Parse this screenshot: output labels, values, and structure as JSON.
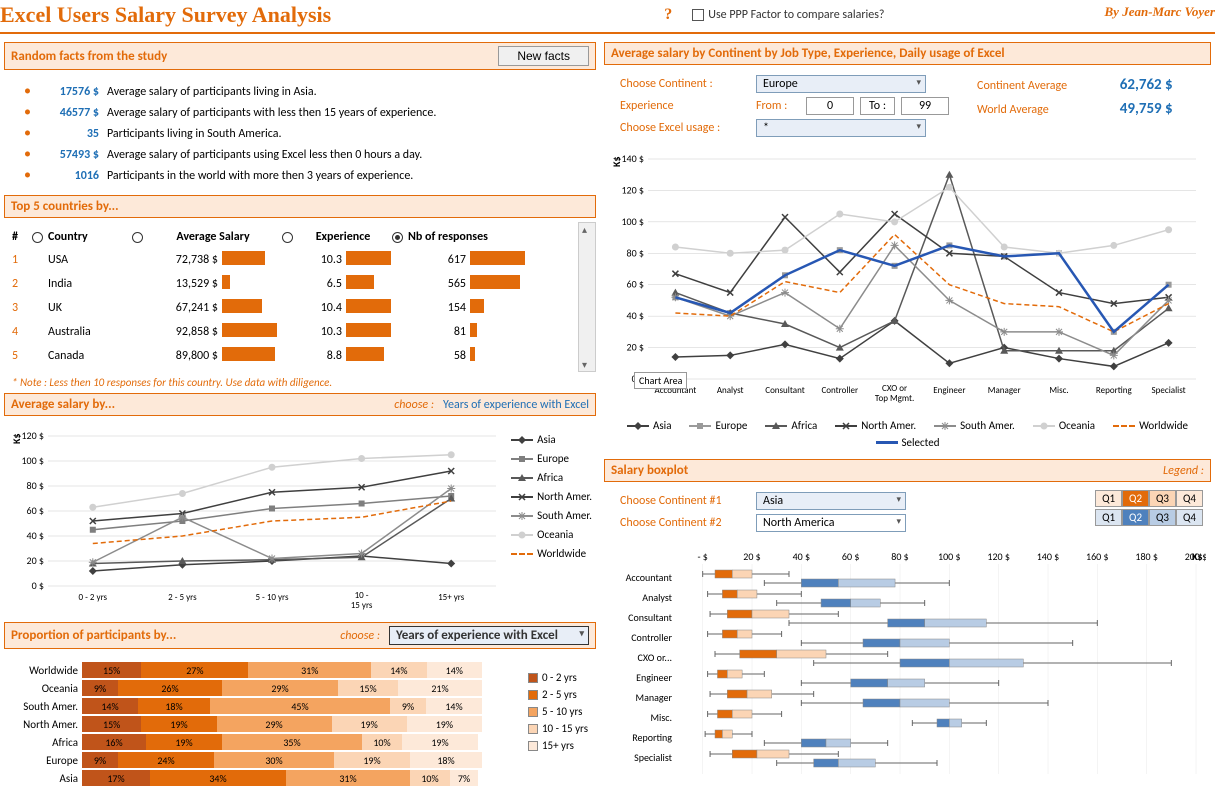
{
  "page": {
    "title": "Excel Users Salary Survey Analysis",
    "byline": "By Jean-Marc Voyer",
    "ppp_label": "Use PPP Factor to compare salaries?",
    "help": "?"
  },
  "facts_section": {
    "title": "Random facts from the study",
    "button": "New facts",
    "items": [
      {
        "value": "17576 $",
        "text": "Average salary of participants living in Asia."
      },
      {
        "value": "46577 $",
        "text": "Average salary of participants with less then 15 years of experience."
      },
      {
        "value": "35",
        "text": "Participants living in South America."
      },
      {
        "value": "57493 $",
        "text": "Average salary of participants using Excel less then 0 hours a day."
      },
      {
        "value": "1016",
        "text": "Participants in the world with more then 3 years of experience."
      }
    ]
  },
  "top5": {
    "title": "Top 5 countries by...",
    "headers": {
      "num": "#",
      "country": "Country",
      "salary": "Average Salary",
      "exp": "Experience",
      "resp": "Nb of responses"
    },
    "selected_sort": "resp",
    "max_salary": 92858,
    "max_exp": 10.4,
    "max_resp": 617,
    "rows": [
      {
        "n": "1",
        "country": "USA",
        "salary": "72,738  $",
        "salary_v": 72738,
        "exp": "10.3",
        "exp_v": 10.3,
        "resp": "617",
        "resp_v": 617
      },
      {
        "n": "2",
        "country": "India",
        "salary": "13,529  $",
        "salary_v": 13529,
        "exp": "6.5",
        "exp_v": 6.5,
        "resp": "565",
        "resp_v": 565
      },
      {
        "n": "3",
        "country": "UK",
        "salary": "67,241  $",
        "salary_v": 67241,
        "exp": "10.4",
        "exp_v": 10.4,
        "resp": "154",
        "resp_v": 154
      },
      {
        "n": "4",
        "country": "Australia",
        "salary": "92,858  $",
        "salary_v": 92858,
        "exp": "10.3",
        "exp_v": 10.3,
        "resp": "81",
        "resp_v": 81
      },
      {
        "n": "5",
        "country": "Canada",
        "salary": "89,800  $",
        "salary_v": 89800,
        "exp": "8.8",
        "exp_v": 8.8,
        "resp": "58",
        "resp_v": 58
      }
    ],
    "note": "* Note : Less then 10 responses for this country. Use data with diligence."
  },
  "avg_by": {
    "title": "Average salary by...",
    "choose": "choose :",
    "selected": "Years of experience with Excel",
    "ylabel": "K$",
    "ylim": [
      0,
      120
    ],
    "ytick": 20,
    "categories": [
      "0 - 2 yrs",
      "2 - 5 yrs",
      "5 - 10 yrs",
      "10 - 15 yrs",
      "15+ yrs"
    ],
    "series": [
      {
        "name": "Asia",
        "color": "#404040",
        "marker": "diamond",
        "values": [
          12,
          17,
          20,
          24,
          18
        ]
      },
      {
        "name": "Europe",
        "color": "#7f7f7f",
        "marker": "square",
        "values": [
          45,
          52,
          62,
          66,
          72
        ]
      },
      {
        "name": "Africa",
        "color": "#595959",
        "marker": "triangle",
        "values": [
          18,
          20,
          21,
          23,
          70
        ]
      },
      {
        "name": "North Amer.",
        "color": "#3f3f3f",
        "marker": "x",
        "values": [
          52,
          58,
          75,
          79,
          92
        ]
      },
      {
        "name": "South Amer.",
        "color": "#8c8c8c",
        "marker": "star",
        "values": [
          19,
          55,
          22,
          26,
          78
        ]
      },
      {
        "name": "Oceania",
        "color": "#d0d0d0",
        "marker": "circle",
        "values": [
          63,
          74,
          95,
          102,
          105
        ]
      },
      {
        "name": "Worldwide",
        "color": "#e26b0a",
        "marker": "none",
        "dash": true,
        "values": [
          34,
          40,
          52,
          55,
          68
        ]
      }
    ]
  },
  "proportion": {
    "title": "Proportion of participants by...",
    "choose": "choose :",
    "selected": "Years of experience with Excel",
    "colors": [
      "#c0541a",
      "#e26b0a",
      "#f4a460",
      "#fbd5b5",
      "#fde9d9"
    ],
    "legend": [
      "0 - 2 yrs",
      "2 - 5 yrs",
      "5 - 10 yrs",
      "10 - 15 yrs",
      "15+ yrs"
    ],
    "rows": [
      {
        "label": "Worldwide",
        "segs": [
          15,
          27,
          31,
          14,
          14
        ]
      },
      {
        "label": "Oceania",
        "segs": [
          9,
          26,
          29,
          15,
          21
        ]
      },
      {
        "label": "South Amer.",
        "segs": [
          14,
          18,
          45,
          9,
          14
        ]
      },
      {
        "label": "North Amer.",
        "segs": [
          15,
          19,
          29,
          19,
          19
        ]
      },
      {
        "label": "Africa",
        "segs": [
          16,
          19,
          35,
          10,
          19
        ]
      },
      {
        "label": "Europe",
        "segs": [
          9,
          24,
          30,
          19,
          18
        ]
      },
      {
        "label": "Asia",
        "segs": [
          17,
          34,
          31,
          10,
          7
        ]
      }
    ]
  },
  "right_chart": {
    "title": "Average salary by Continent by Job Type, Experience, Daily usage of Excel",
    "choose_continent": "Choose Continent :",
    "continent": "Europe",
    "experience_lbl": "Experience",
    "from": "From :",
    "from_v": "0",
    "to": "To :",
    "to_v": "99",
    "usage_lbl": "Choose Excel usage :",
    "usage_v": "*",
    "cont_avg_lbl": "Continent Average",
    "cont_avg": "62,762  $",
    "world_avg_lbl": "World Average",
    "world_avg": "49,759  $",
    "ylabel": "K$",
    "ylim": [
      0,
      140
    ],
    "ytick": 20,
    "chart_area_label": "Chart Area",
    "categories": [
      "Accountant",
      "Analyst",
      "Consultant",
      "Controller",
      "CXO or Top Mgmt.",
      "Engineer",
      "Manager",
      "Misc.",
      "Reporting",
      "Specialist"
    ],
    "series": [
      {
        "name": "Asia",
        "color": "#404040",
        "marker": "diamond",
        "values": [
          14,
          15,
          22,
          13,
          37,
          10,
          20,
          13,
          8,
          23
        ]
      },
      {
        "name": "Europe",
        "color": "#9a9a9a",
        "marker": "square",
        "values": [
          52,
          42,
          66,
          82,
          72,
          85,
          78,
          80,
          30,
          60
        ]
      },
      {
        "name": "Africa",
        "color": "#595959",
        "marker": "triangle",
        "values": [
          55,
          42,
          35,
          20,
          37,
          130,
          18,
          18,
          18,
          45
        ]
      },
      {
        "name": "North Amer.",
        "color": "#3f3f3f",
        "marker": "x",
        "values": [
          67,
          55,
          103,
          68,
          105,
          80,
          78,
          55,
          48,
          52
        ]
      },
      {
        "name": "South Amer.",
        "color": "#8c8c8c",
        "marker": "star",
        "values": [
          52,
          40,
          55,
          32,
          85,
          50,
          30,
          30,
          15,
          50
        ]
      },
      {
        "name": "Oceania",
        "color": "#d0d0d0",
        "marker": "circle",
        "values": [
          84,
          80,
          82,
          105,
          100,
          122,
          84,
          80,
          85,
          95
        ]
      },
      {
        "name": "Worldwide",
        "color": "#e26b0a",
        "marker": "none",
        "dash": true,
        "values": [
          42,
          40,
          62,
          55,
          92,
          60,
          48,
          46,
          30,
          48
        ]
      },
      {
        "name": "Selected",
        "color": "#2757b3",
        "marker": "none",
        "thick": true,
        "values": [
          52,
          42,
          66,
          82,
          72,
          85,
          78,
          80,
          30,
          60
        ]
      }
    ]
  },
  "boxplot": {
    "title": "Salary boxplot",
    "legend_label": "Legend :",
    "choose1": "Choose Continent #1",
    "c1": "Asia",
    "choose2": "Choose Continent #2",
    "c2": "North America",
    "q_labels": [
      "Q1",
      "Q2",
      "Q3",
      "Q4"
    ],
    "colors1": [
      "#fde9d9",
      "#e26b0a",
      "#fbd5b5",
      "#fde9d9"
    ],
    "colors2": [
      "#dbe5f1",
      "#4f81bd",
      "#b8cce4",
      "#dbe5f1"
    ],
    "xlim": [
      -10,
      200
    ],
    "xtick": 20,
    "jobs": [
      "Accountant",
      "Analyst",
      "Consultant",
      "Controller",
      "CXO or...",
      "Engineer",
      "Manager",
      "Misc.",
      "Reporting",
      "Specialist"
    ],
    "data": [
      {
        "a": {
          "wl": 0,
          "q1": 5,
          "q2": 12,
          "q3": 20,
          "wr": 35
        },
        "b": {
          "wl": 25,
          "q1": 40,
          "q2": 55,
          "q3": 78,
          "wr": 100
        }
      },
      {
        "a": {
          "wl": 2,
          "q1": 8,
          "q2": 14,
          "q3": 22,
          "wr": 40
        },
        "b": {
          "wl": 30,
          "q1": 48,
          "q2": 60,
          "q3": 72,
          "wr": 90
        }
      },
      {
        "a": {
          "wl": 3,
          "q1": 10,
          "q2": 20,
          "q3": 35,
          "wr": 55
        },
        "b": {
          "wl": 35,
          "q1": 75,
          "q2": 90,
          "q3": 115,
          "wr": 160
        }
      },
      {
        "a": {
          "wl": 2,
          "q1": 8,
          "q2": 14,
          "q3": 20,
          "wr": 32
        },
        "b": {
          "wl": 40,
          "q1": 65,
          "q2": 80,
          "q3": 100,
          "wr": 150
        }
      },
      {
        "a": {
          "wl": 5,
          "q1": 15,
          "q2": 30,
          "q3": 50,
          "wr": 75
        },
        "b": {
          "wl": 45,
          "q1": 80,
          "q2": 100,
          "q3": 130,
          "wr": 190
        }
      },
      {
        "a": {
          "wl": 2,
          "q1": 6,
          "q2": 10,
          "q3": 16,
          "wr": 25
        },
        "b": {
          "wl": 40,
          "q1": 60,
          "q2": 75,
          "q3": 90,
          "wr": 120
        }
      },
      {
        "a": {
          "wl": 3,
          "q1": 10,
          "q2": 18,
          "q3": 28,
          "wr": 45
        },
        "b": {
          "wl": 40,
          "q1": 65,
          "q2": 80,
          "q3": 100,
          "wr": 140
        }
      },
      {
        "a": {
          "wl": 2,
          "q1": 6,
          "q2": 12,
          "q3": 20,
          "wr": 32
        },
        "b": {
          "wl": 85,
          "q1": 95,
          "q2": 100,
          "q3": 105,
          "wr": 115
        }
      },
      {
        "a": {
          "wl": 1,
          "q1": 5,
          "q2": 8,
          "q3": 12,
          "wr": 20
        },
        "b": {
          "wl": 25,
          "q1": 40,
          "q2": 50,
          "q3": 60,
          "wr": 75
        }
      },
      {
        "a": {
          "wl": 3,
          "q1": 12,
          "q2": 22,
          "q3": 35,
          "wr": 55
        },
        "b": {
          "wl": 30,
          "q1": 45,
          "q2": 55,
          "q3": 70,
          "wr": 95
        }
      }
    ]
  }
}
